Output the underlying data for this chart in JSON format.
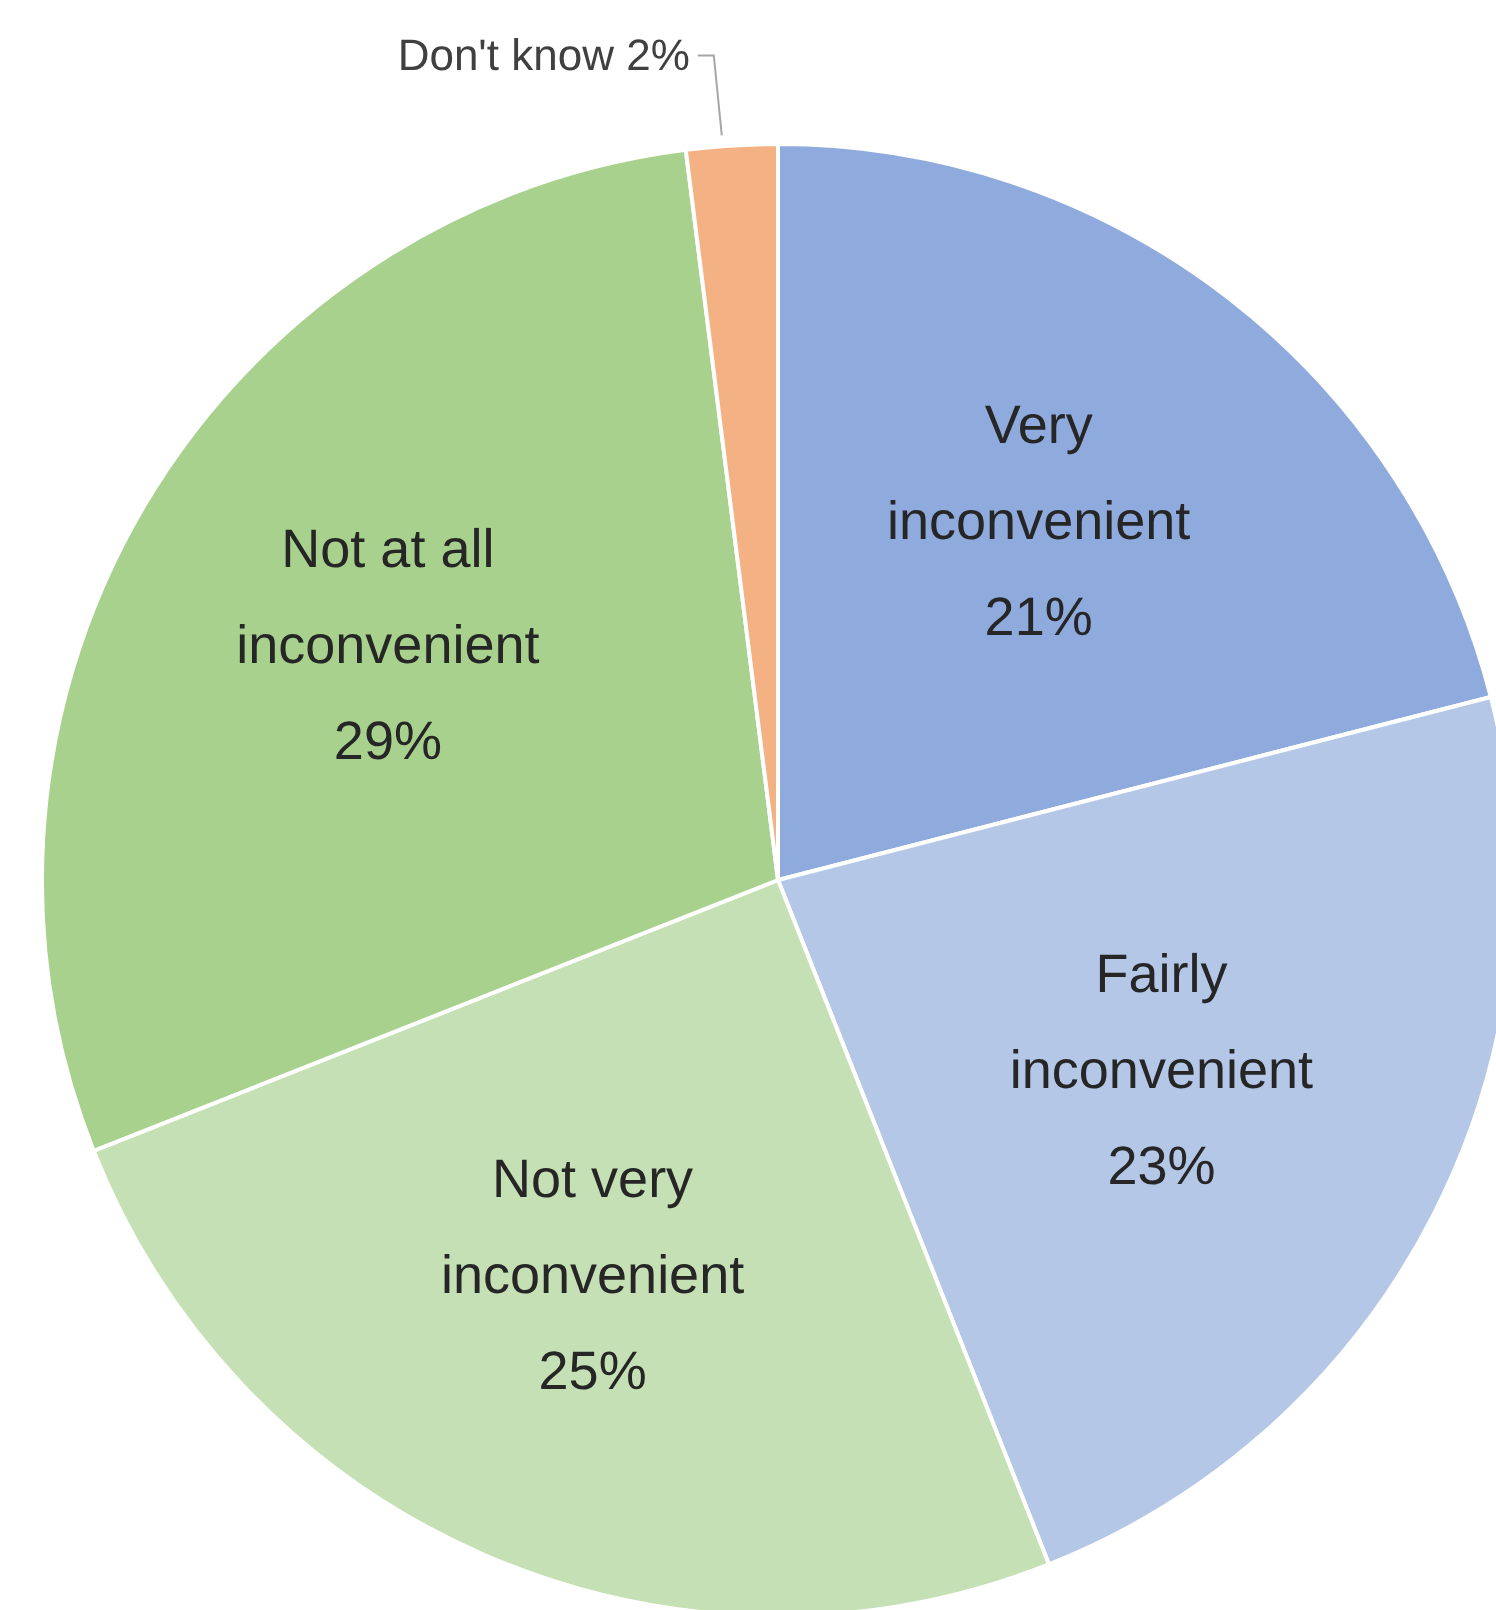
{
  "chart_data": {
    "type": "pie",
    "categories": [
      "Very inconvenient",
      "Fairly inconvenient",
      "Not very inconvenient",
      "Not at all inconvenient",
      "Don't know"
    ],
    "values": [
      21,
      23,
      25,
      29,
      2
    ],
    "value_labels": [
      "21%",
      "23%",
      "25%",
      "29%",
      "2%"
    ],
    "colors": [
      "#8faadc",
      "#b4c7e7",
      "#c5e0b4",
      "#a9d18e",
      "#f4b183"
    ],
    "legend": false
  }
}
